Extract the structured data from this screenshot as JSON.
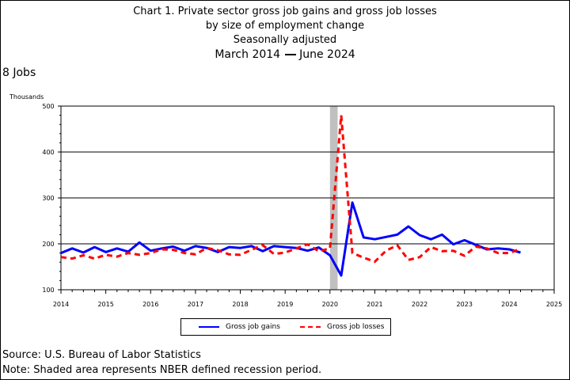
{
  "title": {
    "line1": "Chart 1. Private sector gross job gains and gross job losses",
    "line2": "by size of employment change",
    "line3": "Seasonally adjusted",
    "date_start": "March 2014",
    "date_end": "June 2024"
  },
  "subtitle": "8 Jobs",
  "units_label": "Thousands",
  "source": "Source: U.S. Bureau of Labor Statistics",
  "note": "Note: Shaded area represents NBER defined recession period.",
  "colors": {
    "gains": "#0000ff",
    "losses": "#ff0000",
    "recession": "#c0c0c0"
  },
  "chart_data": {
    "type": "line",
    "title": "Chart 1. Private sector gross job gains and gross job losses by size of employment change",
    "xlabel": "",
    "ylabel": "Thousands",
    "xlim": [
      2014,
      2025
    ],
    "ylim": [
      100,
      500
    ],
    "x_ticks": [
      2014,
      2015,
      2016,
      2017,
      2018,
      2019,
      2020,
      2021,
      2022,
      2023,
      2024,
      2025
    ],
    "y_ticks": [
      100,
      200,
      300,
      400,
      500
    ],
    "grid": "horizontal",
    "legend_position": "bottom",
    "recession_shading": [
      2020.0,
      2020.17
    ],
    "x": [
      2014.0,
      2014.25,
      2014.5,
      2014.75,
      2015.0,
      2015.25,
      2015.5,
      2015.75,
      2016.0,
      2016.25,
      2016.5,
      2016.75,
      2017.0,
      2017.25,
      2017.5,
      2017.75,
      2018.0,
      2018.25,
      2018.5,
      2018.75,
      2019.0,
      2019.25,
      2019.5,
      2019.75,
      2020.0,
      2020.25,
      2020.5,
      2020.75,
      2021.0,
      2021.25,
      2021.5,
      2021.75,
      2022.0,
      2022.25,
      2022.5,
      2022.75,
      2023.0,
      2023.25,
      2023.5,
      2023.75,
      2024.0,
      2024.25
    ],
    "series": [
      {
        "name": "Gross job gains",
        "style": "solid",
        "values": [
          180,
          190,
          181,
          193,
          182,
          190,
          183,
          203,
          185,
          190,
          194,
          185,
          195,
          191,
          182,
          193,
          191,
          195,
          184,
          195,
          193,
          191,
          185,
          192,
          175,
          131,
          290,
          214,
          210,
          215,
          220,
          238,
          219,
          210,
          220,
          199,
          208,
          198,
          188,
          190,
          188,
          181
        ]
      },
      {
        "name": "Gross job losses",
        "style": "dashed",
        "values": [
          171,
          168,
          175,
          168,
          176,
          172,
          180,
          176,
          180,
          188,
          187,
          180,
          177,
          191,
          186,
          177,
          176,
          187,
          197,
          178,
          181,
          190,
          199,
          184,
          190,
          480,
          180,
          170,
          161,
          185,
          197,
          165,
          171,
          193,
          184,
          185,
          174,
          194,
          190,
          180,
          180,
          189
        ]
      }
    ]
  }
}
